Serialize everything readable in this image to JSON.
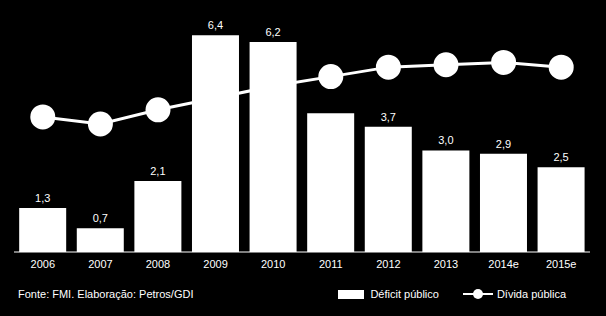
{
  "chart_data": {
    "type": "bar",
    "categories": [
      "2006",
      "2007",
      "2008",
      "2009",
      "2010",
      "2011",
      "2012",
      "2013",
      "2014e",
      "2015e"
    ],
    "series": [
      {
        "name": "Déficit público",
        "type": "bar",
        "color": "#ffffff",
        "values": [
          1.3,
          0.7,
          2.1,
          6.4,
          6.2,
          4.1,
          3.7,
          3.0,
          2.9,
          2.5
        ],
        "data_labels": true,
        "value_labels": [
          "1,3",
          "0,7",
          "2,1",
          "6,4",
          "6,2",
          "",
          "3,7",
          "3,0",
          "2,9",
          "2,5"
        ]
      },
      {
        "name": "Dívida pública",
        "type": "line",
        "color": "#ffffff",
        "marker": "circle",
        "axis": "y2",
        "values": [
          57,
          54,
          60,
          65,
          70,
          74,
          78,
          79,
          80,
          78
        ]
      }
    ],
    "ylim": [
      0,
      7
    ],
    "y2lim": [
      0,
      100
    ],
    "tick_labels": "x",
    "grid": false,
    "legend": "lower right",
    "annotation": "Fonte: FMI. Elaboração: Petros/GDI"
  }
}
